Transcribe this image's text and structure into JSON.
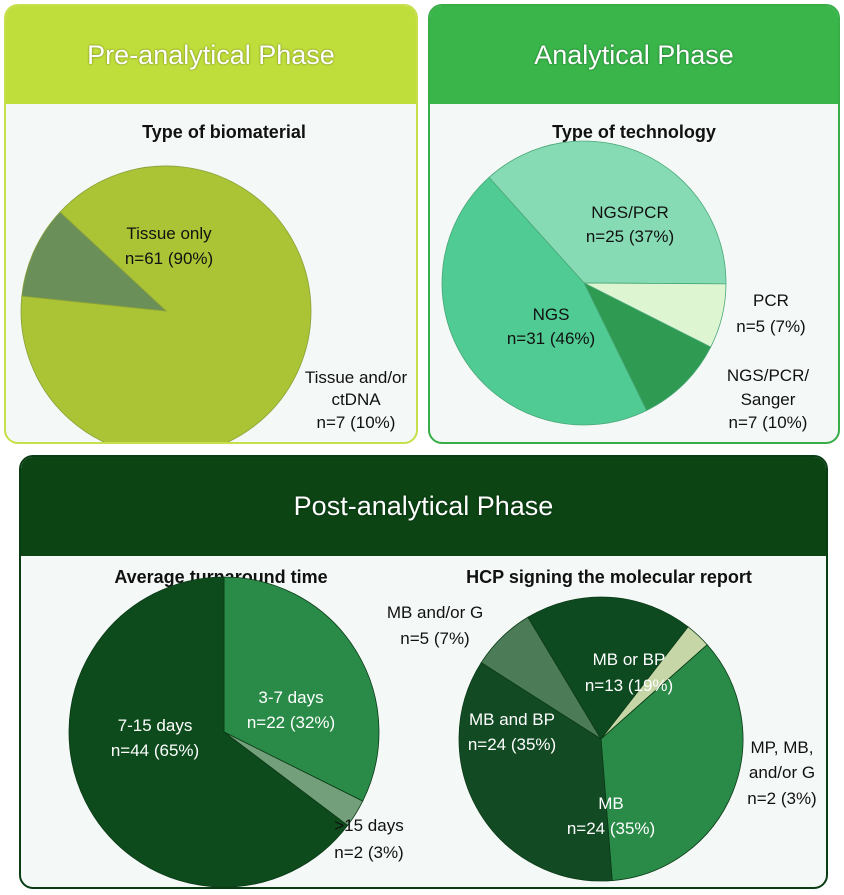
{
  "pre": {
    "title": "Pre-analytical Phase",
    "subtitle": "Type of biomaterial",
    "header_color": "#bfdd3b"
  },
  "analytical": {
    "title": "Analytical Phase",
    "subtitle": "Type of technology",
    "header_color": "#39b54a"
  },
  "post": {
    "title": "Post-analytical Phase",
    "subtitle_left": "Average turnaround time",
    "subtitle_right": "HCP signing the molecular report",
    "header_color": "#0c4414"
  },
  "chart_data": [
    {
      "type": "pie",
      "title": "Type of biomaterial",
      "slices": [
        {
          "label": "Tissue only",
          "n_label": "n=61 (90%)",
          "value": 61,
          "color": "#aac435"
        },
        {
          "label": "Tissue and/or ctDNA",
          "n_label": "n=7 (10%)",
          "value": 7,
          "color": "#6a8f58"
        }
      ]
    },
    {
      "type": "pie",
      "title": "Type of technology",
      "slices": [
        {
          "label": "NGS/PCR",
          "n_label": "n=25 (37%)",
          "value": 25,
          "color": "#86dbb4"
        },
        {
          "label": "PCR",
          "n_label": "n=5 (7%)",
          "value": 5,
          "color": "#ddf5d1"
        },
        {
          "label": "NGS/PCR/ Sanger",
          "n_label": "n=7 (10%)",
          "value": 7,
          "color": "#2e9a52"
        },
        {
          "label": "NGS",
          "n_label": "n=31 (46%)",
          "value": 31,
          "color": "#4fcb93"
        }
      ]
    },
    {
      "type": "pie",
      "title": "Average turnaround time",
      "slices": [
        {
          "label": "3-7 days",
          "n_label": "n=22 (32%)",
          "value": 22,
          "color": "#2a8b48"
        },
        {
          "label": ">15 days",
          "n_label": "n=2 (3%)",
          "value": 2,
          "color": "#73a07a"
        },
        {
          "label": "7-15 days",
          "n_label": "n=44 (65%)",
          "value": 44,
          "color": "#0d4a1c"
        }
      ]
    },
    {
      "type": "pie",
      "title": "HCP signing the molecular report",
      "slices": [
        {
          "label": "MB or BP",
          "n_label": "n=13 (19%)",
          "value": 13,
          "color": "#0e4a20"
        },
        {
          "label": "MP, MB, and/or G",
          "n_label": "n=2 (3%)",
          "value": 2,
          "color": "#c6d6a6"
        },
        {
          "label": "MB",
          "n_label": "n=24 (35%)",
          "value": 24,
          "color": "#2a8a48"
        },
        {
          "label": "MB and BP",
          "n_label": "n=24 (35%)",
          "value": 24,
          "color": "#124a23"
        },
        {
          "label": "MB and/or G",
          "n_label": "n=5 (7%)",
          "value": 5,
          "color": "#4c7b57"
        }
      ]
    }
  ]
}
